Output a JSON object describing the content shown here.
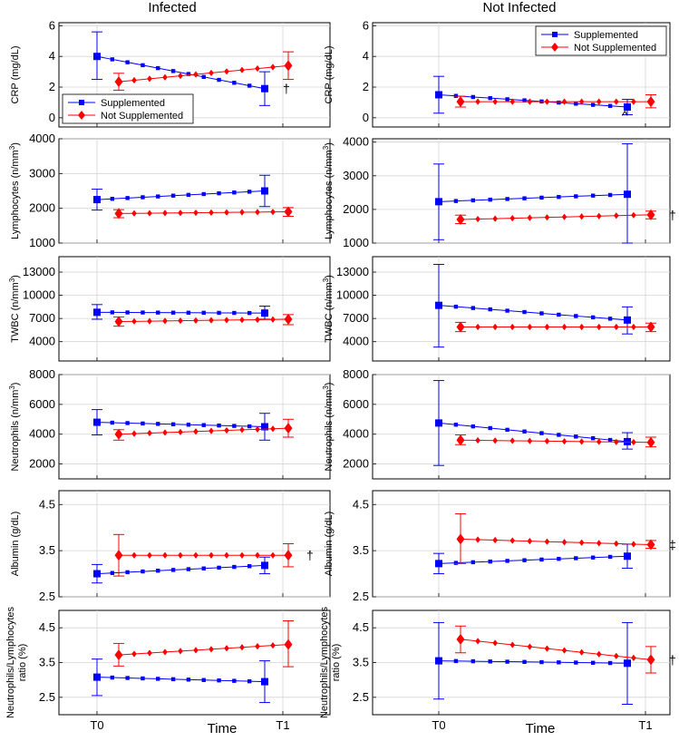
{
  "figure": {
    "col_titles": [
      "Infected",
      "Not Infected"
    ],
    "x_label": "Time",
    "x_ticks": [
      "T0",
      "T1"
    ]
  },
  "colors": {
    "supplemented": "#0000ff",
    "not_supplemented": "#ff0000"
  },
  "legend": {
    "supplemented": "Supplemented",
    "not_supplemented": "Not Supplemented"
  },
  "chart_data": [
    {
      "type": "line",
      "title": "",
      "xlabel": "Time",
      "ylabel": "CRP (mg/dL)",
      "ylabel_sup": "",
      "ylim": [
        -0.6,
        6.2
      ],
      "yticks": [
        0,
        2,
        4,
        6
      ],
      "yticklabels": [
        "0",
        "2",
        "4",
        "6"
      ],
      "column": "Infected",
      "legend": "bottom-left",
      "annotation": "†",
      "series": [
        {
          "name": "Supplemented",
          "start": 4.0,
          "end": 1.9,
          "err_start": [
            2.5,
            5.6
          ],
          "err_end": [
            0.8,
            3.0
          ]
        },
        {
          "name": "Not Supplemented",
          "start": 2.35,
          "end": 3.4,
          "err_start": [
            1.8,
            2.9
          ],
          "err_end": [
            2.5,
            4.3
          ]
        }
      ]
    },
    {
      "type": "line",
      "title": "",
      "xlabel": "Time",
      "ylabel": "CRP (mg/dL)",
      "ylabel_sup": "",
      "ylim": [
        -0.6,
        6.2
      ],
      "yticks": [
        0,
        2,
        4,
        6
      ],
      "yticklabels": [
        "0",
        "2",
        "4",
        "6"
      ],
      "column": "Not Infected",
      "legend": "top-right",
      "annotation": "^",
      "series": [
        {
          "name": "Supplemented",
          "start": 1.5,
          "end": 0.7,
          "err_start": [
            0.3,
            2.7
          ],
          "err_end": [
            0.2,
            1.2
          ]
        },
        {
          "name": "Not Supplemented",
          "start": 1.05,
          "end": 1.05,
          "err_start": [
            0.7,
            1.4
          ],
          "err_end": [
            0.65,
            1.5
          ]
        }
      ]
    },
    {
      "type": "line",
      "title": "",
      "xlabel": "Time",
      "ylabel": "Lymphocytes (n/mm",
      "ylabel_sup": "3",
      "ylim": [
        1000,
        4000
      ],
      "yticks": [
        1000,
        2000,
        3000,
        4000
      ],
      "yticklabels": [
        "1000",
        "2000",
        "3000",
        "4000"
      ],
      "column": "Infected",
      "legend": "none",
      "annotation": "",
      "series": [
        {
          "name": "Supplemented",
          "start": 2250,
          "end": 2500,
          "err_start": [
            1950,
            2550
          ],
          "err_end": [
            2050,
            2950
          ]
        },
        {
          "name": "Not Supplemented",
          "start": 1850,
          "end": 1900,
          "err_start": [
            1730,
            1960
          ],
          "err_end": [
            1770,
            2020
          ]
        }
      ]
    },
    {
      "type": "line",
      "title": "",
      "xlabel": "Time",
      "ylabel": "Lymphocytes (n/mm",
      "ylabel_sup": "3",
      "ylim": [
        1000,
        4100
      ],
      "yticks": [
        1000,
        2000,
        3000,
        4000
      ],
      "yticklabels": [
        "1000",
        "2000",
        "3000",
        "4000"
      ],
      "column": "Not Infected",
      "legend": "none",
      "annotation": "†",
      "series": [
        {
          "name": "Supplemented",
          "start": 2230,
          "end": 2450,
          "err_start": [
            1100,
            3350
          ],
          "err_end": [
            1000,
            3950
          ]
        },
        {
          "name": "Not Supplemented",
          "start": 1700,
          "end": 1840,
          "err_start": [
            1580,
            1830
          ],
          "err_end": [
            1720,
            1950
          ]
        }
      ]
    },
    {
      "type": "line",
      "title": "",
      "xlabel": "Time",
      "ylabel": "TWBC (n/mm",
      "ylabel_sup": "3",
      "ylim": [
        1500,
        15000
      ],
      "yticks": [
        4000,
        7000,
        10000,
        13000
      ],
      "yticklabels": [
        "4000",
        "7000",
        "10000",
        "13000"
      ],
      "column": "Infected",
      "legend": "none",
      "annotation": "",
      "series": [
        {
          "name": "Supplemented",
          "start": 7800,
          "end": 7700,
          "err_start": [
            6900,
            8800
          ],
          "err_end": [
            6900,
            8600
          ]
        },
        {
          "name": "Not Supplemented",
          "start": 6600,
          "end": 6900,
          "err_start": [
            6000,
            7200
          ],
          "err_end": [
            6200,
            7500
          ]
        }
      ]
    },
    {
      "type": "line",
      "title": "",
      "xlabel": "Time",
      "ylabel": "TWBC (n/mm",
      "ylabel_sup": "3",
      "ylim": [
        1500,
        15000
      ],
      "yticks": [
        4000,
        7000,
        10000,
        13000
      ],
      "yticklabels": [
        "4000",
        "7000",
        "10000",
        "13000"
      ],
      "column": "Not Infected",
      "legend": "none",
      "annotation": "",
      "series": [
        {
          "name": "Supplemented",
          "start": 8700,
          "end": 6800,
          "err_start": [
            3300,
            14000
          ],
          "err_end": [
            5000,
            8500
          ]
        },
        {
          "name": "Not Supplemented",
          "start": 5900,
          "end": 5900,
          "err_start": [
            5300,
            6500
          ],
          "err_end": [
            5300,
            6400
          ]
        }
      ]
    },
    {
      "type": "line",
      "title": "",
      "xlabel": "Time",
      "ylabel": "Neutrophils (n/mm",
      "ylabel_sup": "3",
      "ylim": [
        1000,
        8000
      ],
      "yticks": [
        2000,
        4000,
        6000,
        8000
      ],
      "yticklabels": [
        "2000",
        "4000",
        "6000",
        "8000"
      ],
      "column": "Infected",
      "legend": "none",
      "annotation": "",
      "series": [
        {
          "name": "Supplemented",
          "start": 4800,
          "end": 4500,
          "err_start": [
            3950,
            5650
          ],
          "err_end": [
            3600,
            5400
          ]
        },
        {
          "name": "Not Supplemented",
          "start": 4000,
          "end": 4400,
          "err_start": [
            3600,
            4300
          ],
          "err_end": [
            3800,
            5000
          ]
        }
      ]
    },
    {
      "type": "line",
      "title": "",
      "xlabel": "Time",
      "ylabel": "Neutrophils (n/mm",
      "ylabel_sup": "3",
      "ylim": [
        1000,
        8000
      ],
      "yticks": [
        2000,
        4000,
        6000,
        8000
      ],
      "yticklabels": [
        "2000",
        "4000",
        "6000",
        "8000"
      ],
      "column": "Not Infected",
      "legend": "none",
      "annotation": "",
      "series": [
        {
          "name": "Supplemented",
          "start": 4750,
          "end": 3500,
          "err_start": [
            1900,
            7600
          ],
          "err_end": [
            3000,
            4100
          ]
        },
        {
          "name": "Not Supplemented",
          "start": 3600,
          "end": 3450,
          "err_start": [
            3300,
            3950
          ],
          "err_end": [
            3150,
            3800
          ]
        }
      ]
    },
    {
      "type": "line",
      "title": "",
      "xlabel": "Time",
      "ylabel": "Albumin (g/dL)",
      "ylabel_sup": "",
      "ylim": [
        2.5,
        4.8
      ],
      "yticks": [
        2.5,
        3.5,
        4.5
      ],
      "yticklabels": [
        "2.5",
        "3.5",
        "4.5"
      ],
      "column": "Infected",
      "legend": "none",
      "annotation": "†",
      "series": [
        {
          "name": "Supplemented",
          "start": 3.0,
          "end": 3.18,
          "err_start": [
            2.8,
            3.2
          ],
          "err_end": [
            3.0,
            3.36
          ]
        },
        {
          "name": "Not Supplemented",
          "start": 3.4,
          "end": 3.4,
          "err_start": [
            2.95,
            3.85
          ],
          "err_end": [
            3.15,
            3.65
          ]
        }
      ]
    },
    {
      "type": "line",
      "title": "",
      "xlabel": "Time",
      "ylabel": "Albumin (g/dL)",
      "ylabel_sup": "",
      "ylim": [
        2.5,
        4.8
      ],
      "yticks": [
        2.5,
        3.5,
        4.5
      ],
      "yticklabels": [
        "2.5",
        "3.5",
        "4.5"
      ],
      "column": "Not Infected",
      "legend": "none",
      "annotation": "‡",
      "series": [
        {
          "name": "Supplemented",
          "start": 3.22,
          "end": 3.38,
          "err_start": [
            3.0,
            3.44
          ],
          "err_end": [
            3.12,
            3.64
          ]
        },
        {
          "name": "Not Supplemented",
          "start": 3.75,
          "end": 3.63,
          "err_start": [
            3.22,
            4.3
          ],
          "err_end": [
            3.55,
            3.72
          ]
        }
      ]
    },
    {
      "type": "line",
      "title": "",
      "xlabel": "Time",
      "ylabel": "Neutrophils/Lymphocytes ratio (%)",
      "ylabel_sup": "",
      "ylim": [
        2.0,
        5.0
      ],
      "yticks": [
        2.5,
        3.5,
        4.5
      ],
      "yticklabels": [
        "2.5",
        "3.5",
        "4.5"
      ],
      "column": "Infected",
      "legend": "none",
      "annotation": "",
      "series": [
        {
          "name": "Supplemented",
          "start": 3.08,
          "end": 2.95,
          "err_start": [
            2.55,
            3.6
          ],
          "err_end": [
            2.35,
            3.55
          ]
        },
        {
          "name": "Not Supplemented",
          "start": 3.72,
          "end": 4.02,
          "err_start": [
            3.4,
            4.05
          ],
          "err_end": [
            3.38,
            4.7
          ]
        }
      ]
    },
    {
      "type": "line",
      "title": "",
      "xlabel": "Time",
      "ylabel": "Neutrophils/Lymphocytes ratio (%)",
      "ylabel_sup": "",
      "ylim": [
        2.0,
        5.0
      ],
      "yticks": [
        2.5,
        3.5,
        4.5
      ],
      "yticklabels": [
        "2.5",
        "3.5",
        "4.5"
      ],
      "column": "Not Infected",
      "legend": "none",
      "annotation": "†",
      "series": [
        {
          "name": "Supplemented",
          "start": 3.55,
          "end": 3.48,
          "err_start": [
            2.45,
            4.65
          ],
          "err_end": [
            2.3,
            4.65
          ]
        },
        {
          "name": "Not Supplemented",
          "start": 4.17,
          "end": 3.58,
          "err_start": [
            3.78,
            4.55
          ],
          "err_end": [
            3.2,
            3.96
          ]
        }
      ]
    }
  ]
}
